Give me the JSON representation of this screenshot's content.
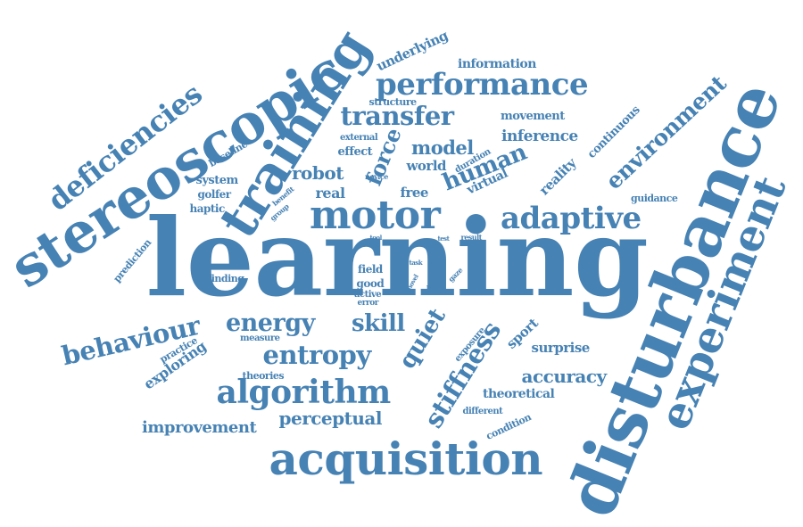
{
  "color": "#4682B4",
  "words": [
    "learning",
    "disturbance",
    "stereoscopic",
    "experiment",
    "training",
    "acquisition",
    "motor",
    "algorithm",
    "performance",
    "deficiencies",
    "adaptive",
    "behaviour",
    "entropy",
    "stiffness",
    "energy",
    "transfer",
    "quiet",
    "skill",
    "human",
    "environment",
    "force",
    "accuracy",
    "perceptual",
    "improvement",
    "robot",
    "exploring",
    "model",
    "inference",
    "surprise",
    "sport",
    "theoretical",
    "reality",
    "information",
    "underlying",
    "movement",
    "real",
    "world",
    "free",
    "virtual",
    "continuous",
    "effect",
    "structure",
    "system",
    "haptic",
    "baseline",
    "golfer",
    "prediction",
    "practice",
    "theories",
    "measure",
    "condition",
    "different",
    "field",
    "good",
    "finding",
    "active",
    "error",
    "exposure",
    "guidance",
    "external",
    "duration",
    "novice",
    "benefit",
    "group",
    "tool",
    "test",
    "result",
    "task",
    "novel",
    "gaze",
    "putt"
  ]
}
